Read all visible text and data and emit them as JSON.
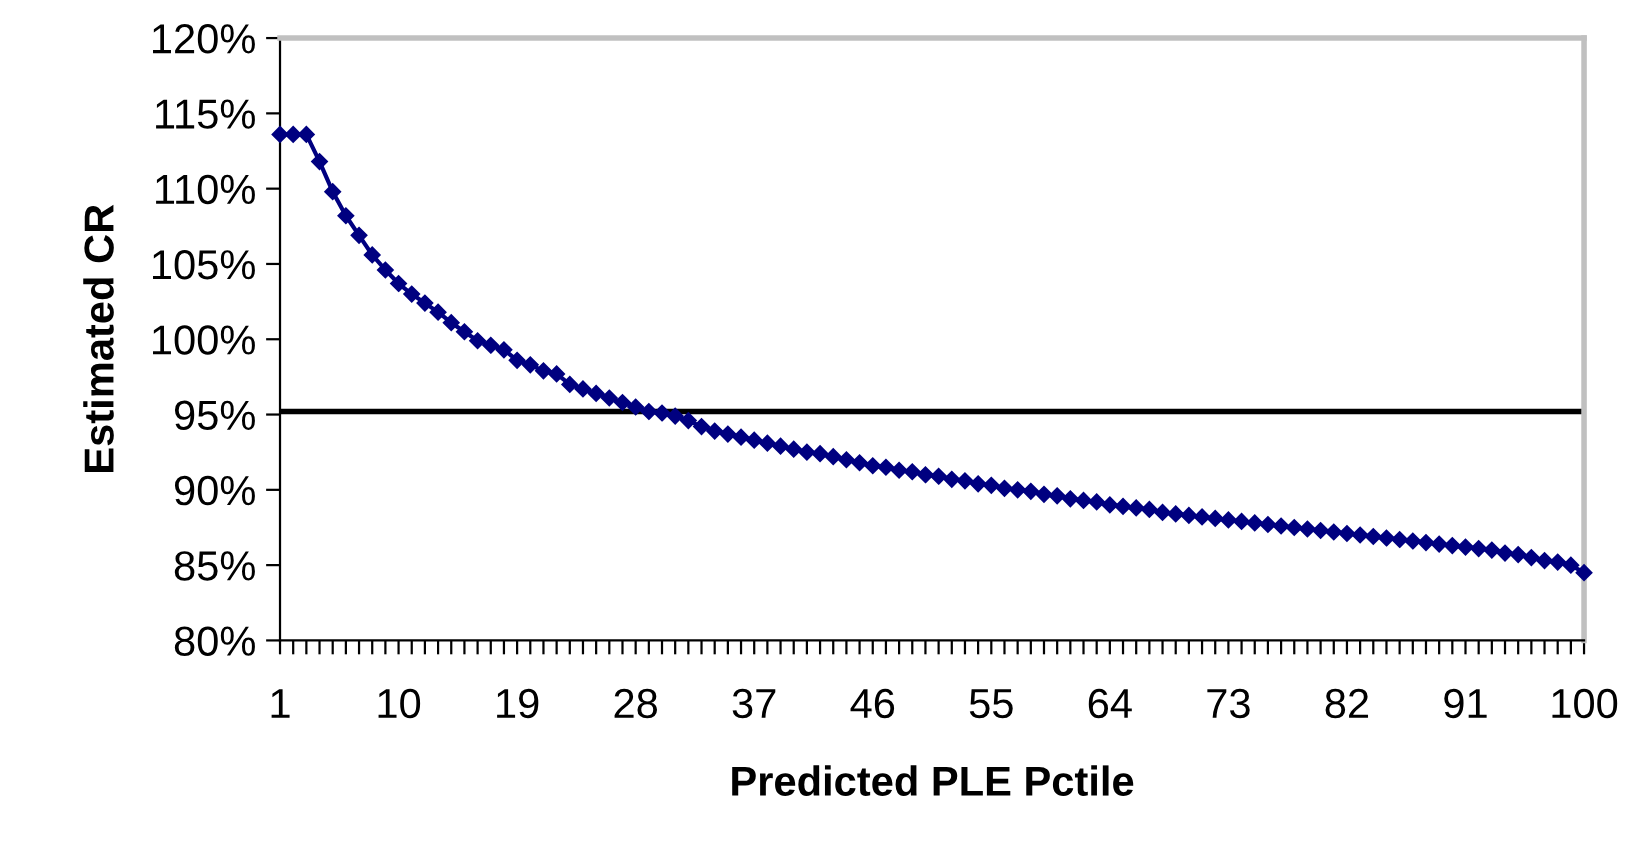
{
  "chart_data": {
    "type": "line",
    "xlabel": "Predicted PLE Pctile",
    "ylabel": "Estimated CR",
    "categories": [
      "1",
      null,
      null,
      null,
      null,
      null,
      null,
      null,
      null,
      "10",
      null,
      null,
      null,
      null,
      null,
      null,
      null,
      null,
      "19",
      null,
      null,
      null,
      null,
      null,
      null,
      null,
      null,
      "28",
      null,
      null,
      null,
      null,
      null,
      null,
      null,
      null,
      "37",
      null,
      null,
      null,
      null,
      null,
      null,
      null,
      null,
      "46",
      null,
      null,
      null,
      null,
      null,
      null,
      null,
      null,
      "55",
      null,
      null,
      null,
      null,
      null,
      null,
      null,
      null,
      "64",
      null,
      null,
      null,
      null,
      null,
      null,
      null,
      null,
      "73",
      null,
      null,
      null,
      null,
      null,
      null,
      null,
      null,
      "82",
      null,
      null,
      null,
      null,
      null,
      null,
      null,
      null,
      "91",
      null,
      null,
      null,
      null,
      null,
      null,
      null,
      null,
      "100"
    ],
    "series": [
      {
        "color": "#000080",
        "values": [
          113.6,
          113.6,
          113.6,
          111.8,
          109.8,
          108.2,
          106.9,
          105.6,
          104.6,
          103.7,
          103.0,
          102.4,
          101.8,
          101.1,
          100.5,
          99.9,
          99.6,
          99.3,
          98.6,
          98.3,
          97.9,
          97.7,
          97.0,
          96.7,
          96.4,
          96.1,
          95.8,
          95.5,
          95.2,
          95.1,
          94.9,
          94.6,
          94.2,
          93.9,
          93.7,
          93.5,
          93.3,
          93.1,
          92.9,
          92.7,
          92.5,
          92.4,
          92.2,
          92.0,
          91.8,
          91.6,
          91.5,
          91.3,
          91.2,
          91.0,
          90.9,
          90.7,
          90.6,
          90.4,
          90.3,
          90.1,
          90.0,
          89.9,
          89.7,
          89.6,
          89.4,
          89.3,
          89.2,
          89.0,
          88.9,
          88.8,
          88.7,
          88.5,
          88.4,
          88.3,
          88.2,
          88.1,
          88.0,
          87.9,
          87.8,
          87.7,
          87.6,
          87.5,
          87.4,
          87.3,
          87.2,
          87.1,
          87.0,
          86.9,
          86.8,
          86.7,
          86.6,
          86.5,
          86.4,
          86.3,
          86.2,
          86.1,
          86.0,
          85.8,
          85.7,
          85.5,
          85.3,
          85.2,
          85.0,
          84.5
        ]
      }
    ],
    "marker": "diamond",
    "line_style": "solid",
    "grid": false,
    "legend": false,
    "ylim": [
      80,
      120
    ],
    "yticks": [
      {
        "value": 80,
        "label": "80%"
      },
      {
        "value": 85,
        "label": "85%"
      },
      {
        "value": 90,
        "label": "90%"
      },
      {
        "value": 95,
        "label": "95%"
      },
      {
        "value": 100,
        "label": "100%"
      },
      {
        "value": 105,
        "label": "105%"
      },
      {
        "value": 110,
        "label": "110%"
      },
      {
        "value": 115,
        "label": "115%"
      },
      {
        "value": 120,
        "label": "120%"
      }
    ],
    "ref_lines": [
      {
        "axis": "y",
        "value": 95.2,
        "label": null,
        "color": "#000000",
        "line_style": "solid"
      }
    ]
  }
}
